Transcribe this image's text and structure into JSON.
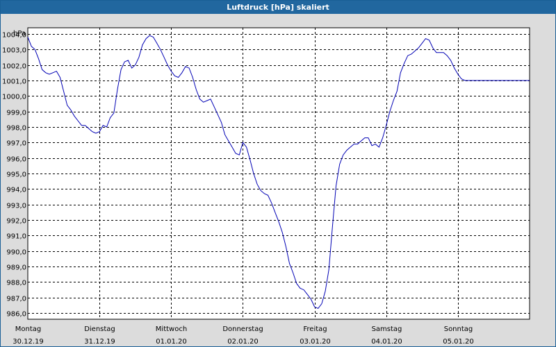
{
  "window": {
    "title": "Luftdruck [hPa] skaliert"
  },
  "chart_data": {
    "type": "line",
    "title": "Luftdruck [hPa] skaliert",
    "ylabel": "hPa",
    "xlabel": "",
    "ylim": [
      985.6,
      1004.4
    ],
    "yticks": [
      "986,0",
      "987,0",
      "988,0",
      "989,0",
      "990,0",
      "991,0",
      "992,0",
      "993,0",
      "994,0",
      "995,0",
      "996,0",
      "997,0",
      "998,0",
      "999,0",
      "1000,0",
      "1001,0",
      "1002,0",
      "1003,0",
      "1004,0"
    ],
    "ytick_values": [
      986,
      987,
      988,
      989,
      990,
      991,
      992,
      993,
      994,
      995,
      996,
      997,
      998,
      999,
      1000,
      1001,
      1002,
      1003,
      1004
    ],
    "xlim": [
      0,
      7
    ],
    "xticks": [
      {
        "day": "Montag",
        "date": "30.12.19"
      },
      {
        "day": "Dienstag",
        "date": "31.12.19"
      },
      {
        "day": "Mittwoch",
        "date": "01.01.20"
      },
      {
        "day": "Donnerstag",
        "date": "02.01.20"
      },
      {
        "day": "Freitag",
        "date": "03.01.20"
      },
      {
        "day": "Samstag",
        "date": "04.01.20"
      },
      {
        "day": "Sonntag",
        "date": "05.01.20"
      }
    ],
    "grid": true,
    "line_color": "#0000b4",
    "series": [
      {
        "x": [
          0,
          0.05,
          0.1,
          0.15,
          0.2,
          0.25,
          0.3,
          0.35,
          0.4,
          0.45,
          0.5,
          0.55,
          0.6,
          0.65,
          0.7,
          0.75,
          0.8,
          0.85,
          0.9,
          0.95,
          1.0,
          1.05,
          1.1,
          1.15,
          1.2,
          1.25,
          1.3,
          1.35,
          1.4,
          1.45,
          1.5,
          1.55,
          1.6,
          1.65,
          1.7,
          1.75,
          1.8,
          1.85,
          1.9,
          1.95,
          2.0,
          2.05,
          2.1,
          2.15,
          2.2,
          2.25,
          2.3,
          2.35,
          2.4,
          2.45,
          2.5,
          2.55,
          2.6,
          2.65,
          2.7,
          2.75,
          2.8,
          2.85,
          2.9,
          2.95,
          3.0,
          3.05,
          3.1,
          3.15,
          3.2,
          3.25,
          3.3,
          3.35,
          3.4,
          3.45,
          3.5,
          3.55,
          3.6,
          3.65,
          3.7,
          3.75,
          3.8,
          3.85,
          3.9,
          3.95,
          4.0,
          4.05,
          4.1,
          4.15,
          4.2,
          4.25,
          4.3,
          4.35,
          4.4,
          4.45,
          4.5,
          4.55,
          4.6,
          4.65,
          4.7,
          4.75,
          4.8,
          4.85,
          4.9,
          4.95,
          5.0,
          5.05,
          5.1,
          5.15,
          5.2,
          5.25,
          5.3,
          5.35,
          5.4,
          5.45,
          5.5,
          5.55,
          5.6,
          5.65,
          5.7,
          5.75,
          5.8,
          5.85,
          5.9,
          5.95,
          6.0,
          6.05,
          6.1,
          6.15,
          6.2,
          6.25,
          6.3,
          6.35,
          6.4,
          6.45,
          6.5,
          6.55,
          6.6,
          6.65,
          6.7,
          6.75,
          6.8,
          6.85,
          6.9,
          6.95,
          7.0
        ],
        "values": [
          1003.8,
          1003.2,
          1003.0,
          1002.4,
          1001.7,
          1001.5,
          1001.4,
          1001.5,
          1001.6,
          1001.2,
          1000.3,
          999.4,
          999.1,
          998.7,
          998.4,
          998.1,
          998.1,
          997.9,
          997.7,
          997.6,
          997.7,
          998.1,
          998.0,
          998.6,
          998.9,
          1000.4,
          1001.7,
          1002.2,
          1002.3,
          1001.8,
          1002.0,
          1002.5,
          1003.3,
          1003.7,
          1003.9,
          1003.8,
          1003.4,
          1003.0,
          1002.5,
          1002.0,
          1001.6,
          1001.3,
          1001.2,
          1001.5,
          1001.9,
          1001.8,
          1001.2,
          1000.4,
          999.8,
          999.6,
          999.7,
          999.8,
          999.3,
          998.8,
          998.3,
          997.5,
          997.1,
          996.7,
          996.3,
          996.2,
          997.0,
          996.7,
          995.9,
          995.0,
          994.3,
          993.9,
          993.7,
          993.6,
          993.1,
          992.5,
          991.9,
          991.2,
          990.3,
          989.2,
          988.6,
          987.9,
          987.6,
          987.5,
          987.2,
          986.9,
          986.4,
          986.3,
          986.6,
          987.4,
          988.8,
          991.6,
          994.2,
          995.6,
          996.2,
          996.5,
          996.7,
          996.9,
          996.9,
          997.1,
          997.3,
          997.3,
          996.8,
          996.9,
          996.7,
          997.3,
          998.1,
          999.0,
          999.7,
          1000.3,
          1001.5,
          1002.1,
          1002.6,
          1002.7,
          1002.9,
          1003.1,
          1003.4,
          1003.7,
          1003.6,
          1003.1,
          1002.8,
          1002.8,
          1002.8,
          1002.6,
          1002.3,
          1001.8,
          1001.4,
          1001.1,
          1001.0,
          1001.0,
          1001.0,
          1001.0,
          1001.0,
          1001.0,
          1001.0,
          1001.0,
          1001.0,
          1001.0,
          1001.0,
          1001.0,
          1001.0,
          1001.0,
          1001.0,
          1001.0,
          1001.0,
          1001.0,
          1001.0
        ]
      }
    ]
  }
}
